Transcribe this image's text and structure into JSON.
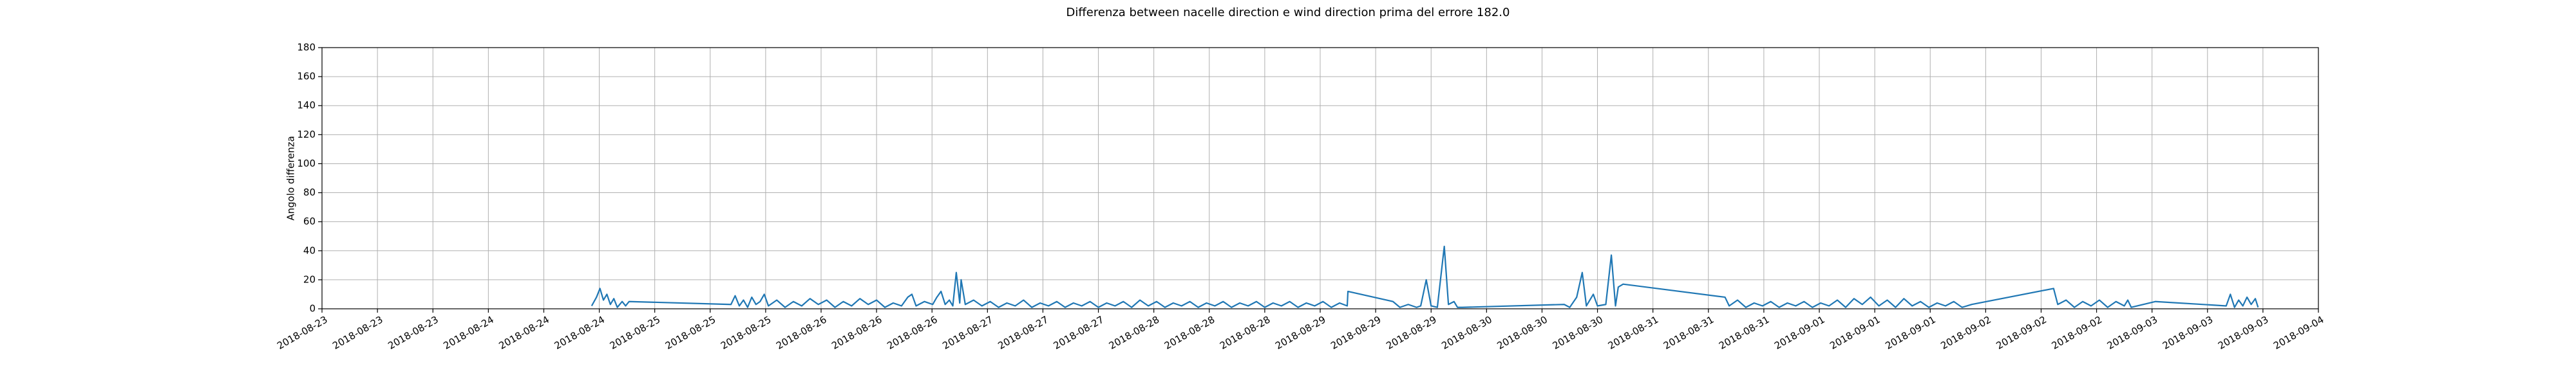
{
  "chart_data": {
    "type": "line",
    "title": "Differenza between nacelle direction e wind direction prima del errore 182.0",
    "ylabel": "Angolo differenza",
    "color": "#1f77b4",
    "grid": true,
    "xlim": [
      0,
      288
    ],
    "ylim": [
      0,
      180
    ],
    "yticks": [
      0,
      20,
      40,
      60,
      80,
      100,
      120,
      140,
      160,
      180
    ],
    "xticks": [
      {
        "value": 0,
        "label": "2018-08-23"
      },
      {
        "value": 8,
        "label": "2018-08-23"
      },
      {
        "value": 16,
        "label": "2018-08-23"
      },
      {
        "value": 24,
        "label": "2018-08-24"
      },
      {
        "value": 32,
        "label": "2018-08-24"
      },
      {
        "value": 40,
        "label": "2018-08-24"
      },
      {
        "value": 48,
        "label": "2018-08-25"
      },
      {
        "value": 56,
        "label": "2018-08-25"
      },
      {
        "value": 64,
        "label": "2018-08-25"
      },
      {
        "value": 72,
        "label": "2018-08-26"
      },
      {
        "value": 80,
        "label": "2018-08-26"
      },
      {
        "value": 88,
        "label": "2018-08-26"
      },
      {
        "value": 96,
        "label": "2018-08-27"
      },
      {
        "value": 104,
        "label": "2018-08-27"
      },
      {
        "value": 112,
        "label": "2018-08-27"
      },
      {
        "value": 120,
        "label": "2018-08-28"
      },
      {
        "value": 128,
        "label": "2018-08-28"
      },
      {
        "value": 136,
        "label": "2018-08-28"
      },
      {
        "value": 144,
        "label": "2018-08-29"
      },
      {
        "value": 152,
        "label": "2018-08-29"
      },
      {
        "value": 160,
        "label": "2018-08-29"
      },
      {
        "value": 168,
        "label": "2018-08-30"
      },
      {
        "value": 176,
        "label": "2018-08-30"
      },
      {
        "value": 184,
        "label": "2018-08-30"
      },
      {
        "value": 192,
        "label": "2018-08-31"
      },
      {
        "value": 200,
        "label": "2018-08-31"
      },
      {
        "value": 208,
        "label": "2018-08-31"
      },
      {
        "value": 216,
        "label": "2018-09-01"
      },
      {
        "value": 224,
        "label": "2018-09-01"
      },
      {
        "value": 232,
        "label": "2018-09-01"
      },
      {
        "value": 240,
        "label": "2018-09-02"
      },
      {
        "value": 248,
        "label": "2018-09-02"
      },
      {
        "value": 256,
        "label": "2018-09-02"
      },
      {
        "value": 264,
        "label": "2018-09-03"
      },
      {
        "value": 272,
        "label": "2018-09-03"
      },
      {
        "value": 280,
        "label": "2018-09-03"
      },
      {
        "value": 288,
        "label": "2018-09-04"
      }
    ],
    "x": [
      38.9,
      39.6,
      40.1,
      40.6,
      41.1,
      41.6,
      42.1,
      42.6,
      43.3,
      43.8,
      44.3,
      59.0,
      59.6,
      60.2,
      60.8,
      61.4,
      62.0,
      62.6,
      63.2,
      63.8,
      64.4,
      65.6,
      66.8,
      68.0,
      69.2,
      70.4,
      71.6,
      72.8,
      74.0,
      75.2,
      76.4,
      77.6,
      78.8,
      80.0,
      81.2,
      82.4,
      83.6,
      84.5,
      85.1,
      85.7,
      86.9,
      88.1,
      88.7,
      89.3,
      89.9,
      90.5,
      91.0,
      91.5,
      92.0,
      92.2,
      92.8,
      94.0,
      95.2,
      96.4,
      97.6,
      98.8,
      100.0,
      101.2,
      102.4,
      103.6,
      104.8,
      106.0,
      107.2,
      108.4,
      109.6,
      110.8,
      112.0,
      113.2,
      114.4,
      115.6,
      116.8,
      118.0,
      119.2,
      120.4,
      121.6,
      122.8,
      124.0,
      125.2,
      126.4,
      127.6,
      128.8,
      130.0,
      131.2,
      132.4,
      133.6,
      134.8,
      136.0,
      137.2,
      138.4,
      139.6,
      140.8,
      142.0,
      143.2,
      144.4,
      145.6,
      146.8,
      147.9,
      148.0,
      154.5,
      155.5,
      156.7,
      157.9,
      158.5,
      159.3,
      160.0,
      160.9,
      161.9,
      162.5,
      163.3,
      163.8,
      164.5,
      179.2,
      180.0,
      181.0,
      181.8,
      182.4,
      183.4,
      184.0,
      185.2,
      186.0,
      186.6,
      187.0,
      187.7,
      202.4,
      203.0,
      204.2,
      205.4,
      206.6,
      207.8,
      209.0,
      210.2,
      211.4,
      212.6,
      213.8,
      215.0,
      216.2,
      217.4,
      218.6,
      219.8,
      221.0,
      222.2,
      223.4,
      224.6,
      225.8,
      227.0,
      228.2,
      229.4,
      230.6,
      231.8,
      233.0,
      234.2,
      235.4,
      236.6,
      238.0,
      249.8,
      250.4,
      251.6,
      252.8,
      254.0,
      255.2,
      256.4,
      257.6,
      258.8,
      260.0,
      260.5,
      261.0,
      264.5,
      274.7,
      275.3,
      275.9,
      276.5,
      277.1,
      277.7,
      278.3,
      278.9,
      279.3
    ],
    "values": [
      2,
      8,
      14,
      6,
      10,
      3,
      7,
      1,
      5,
      2,
      5,
      3,
      9,
      2,
      6,
      1,
      8,
      3,
      5,
      10,
      2,
      6,
      1,
      5,
      2,
      7,
      3,
      6,
      1,
      5,
      2,
      7,
      3,
      6,
      1,
      4,
      2,
      8,
      10,
      2,
      5,
      3,
      8,
      12,
      3,
      6,
      2,
      25,
      4,
      20,
      3,
      6,
      2,
      5,
      1,
      4,
      2,
      6,
      1,
      4,
      2,
      5,
      1,
      4,
      2,
      5,
      1,
      4,
      2,
      5,
      1,
      6,
      2,
      5,
      1,
      4,
      2,
      5,
      1,
      4,
      2,
      5,
      1,
      4,
      2,
      5,
      1,
      4,
      2,
      5,
      1,
      4,
      2,
      5,
      1,
      4,
      2,
      12,
      5,
      1,
      3,
      1,
      2,
      20,
      2,
      1,
      43,
      3,
      5,
      1,
      1,
      3,
      1,
      8,
      25,
      2,
      10,
      2,
      3,
      37,
      2,
      15,
      17,
      8,
      2,
      6,
      1,
      4,
      2,
      5,
      1,
      4,
      2,
      5,
      1,
      4,
      2,
      6,
      1,
      7,
      3,
      8,
      2,
      6,
      1,
      7,
      2,
      5,
      1,
      4,
      2,
      5,
      1,
      3,
      14,
      3,
      6,
      1,
      5,
      2,
      6,
      1,
      5,
      2,
      6,
      1,
      5,
      2,
      10,
      1,
      6,
      2,
      8,
      3,
      7,
      1
    ]
  }
}
